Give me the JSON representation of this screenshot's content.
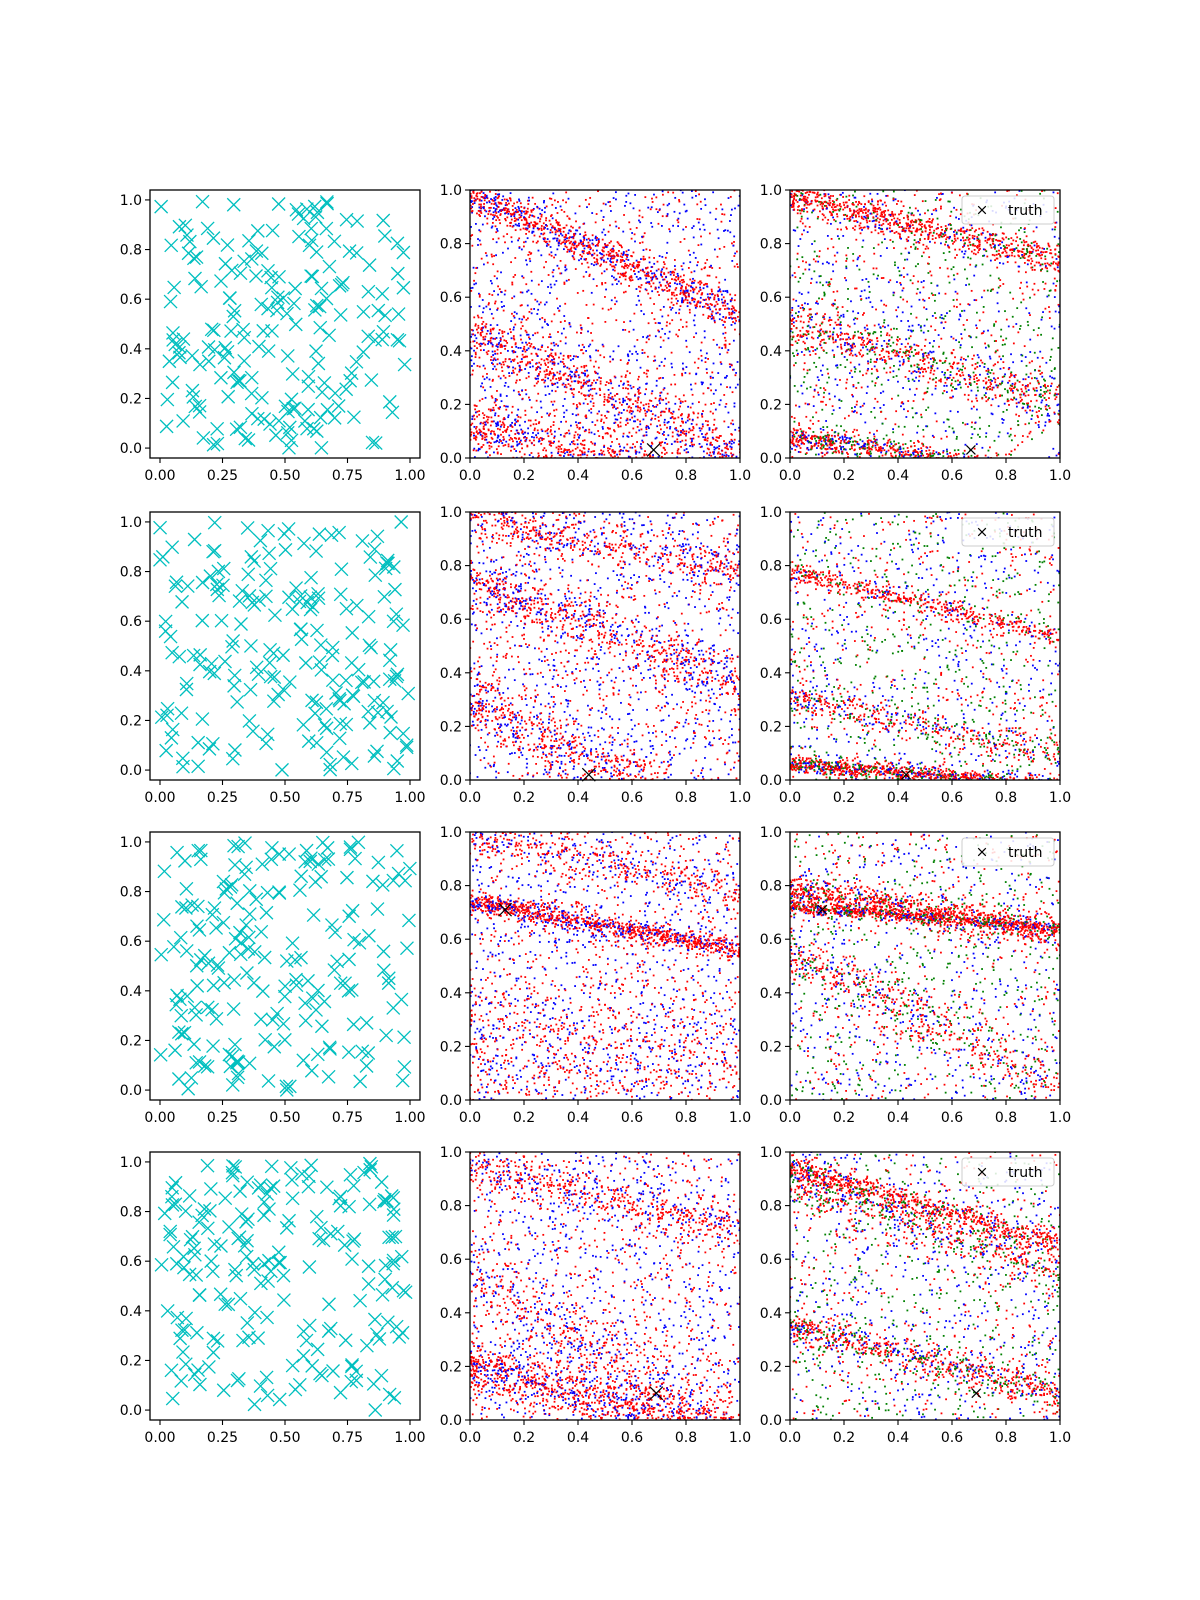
{
  "chart_data": [
    {
      "type": "scatter",
      "grid_row": 1,
      "grid_col": 1,
      "kind": "uniform",
      "seed": 101,
      "marker": "x",
      "color": "#00bfbf",
      "xlim": [
        -0.04,
        1.04
      ],
      "ylim": [
        -0.04,
        1.04
      ],
      "xticks": [
        0,
        0.25,
        0.5,
        0.75,
        1.0
      ],
      "xtick_labels": [
        "0.00",
        "0.25",
        "0.50",
        "0.75",
        "1.00"
      ],
      "yticks": [
        0,
        0.2,
        0.4,
        0.6,
        0.8,
        1.0
      ],
      "ytick_labels": [
        "0.0",
        "0.2",
        "0.4",
        "0.6",
        "0.8",
        "1.0"
      ],
      "n_points": 200
    },
    {
      "type": "scatter",
      "grid_row": 1,
      "grid_col": 2,
      "kind": "bands",
      "seed": 102,
      "colors": [
        "#0000ff",
        "#ff0000"
      ],
      "xlim": [
        0,
        1
      ],
      "ylim": [
        0,
        1
      ],
      "xticks": [
        0,
        0.2,
        0.4,
        0.6,
        0.8,
        1.0
      ],
      "xtick_labels": [
        "0.0",
        "0.2",
        "0.4",
        "0.6",
        "0.8",
        "1.0"
      ],
      "yticks": [
        0,
        0.2,
        0.4,
        0.6,
        0.8,
        1.0
      ],
      "ytick_labels": [
        "0.0",
        "0.2",
        "0.4",
        "0.6",
        "0.8",
        "1.0"
      ],
      "truth": [
        0.68,
        0.03
      ],
      "bands": [
        {
          "y0": 0.98,
          "slope": -0.45,
          "spread": 0.035,
          "n": 900
        },
        {
          "y0": 0.47,
          "slope": -0.45,
          "spread": 0.05,
          "n": 700
        },
        {
          "y0": 0.12,
          "slope": -0.2,
          "spread": 0.05,
          "n": 700
        }
      ]
    },
    {
      "type": "scatter",
      "grid_row": 1,
      "grid_col": 3,
      "kind": "bands",
      "seed": 103,
      "colors": [
        "#0000ff",
        "#008000",
        "#ff0000"
      ],
      "xlim": [
        0,
        1
      ],
      "ylim": [
        0,
        1
      ],
      "xticks": [
        0,
        0.2,
        0.4,
        0.6,
        0.8,
        1.0
      ],
      "xtick_labels": [
        "0.0",
        "0.2",
        "0.4",
        "0.6",
        "0.8",
        "1.0"
      ],
      "yticks": [
        0,
        0.2,
        0.4,
        0.6,
        0.8,
        1.0
      ],
      "ytick_labels": [
        "0.0",
        "0.2",
        "0.4",
        "0.6",
        "0.8",
        "1.0"
      ],
      "truth": [
        0.67,
        0.03
      ],
      "legend": {
        "label": "truth",
        "location": "upper right"
      },
      "bands": [
        {
          "y0": 0.98,
          "slope": -0.25,
          "spread": 0.03,
          "n": 800
        },
        {
          "y0": 0.5,
          "slope": -0.3,
          "spread": 0.04,
          "n": 600
        },
        {
          "y0": 0.08,
          "slope": -0.15,
          "spread": 0.02,
          "n": 800
        }
      ]
    },
    {
      "type": "scatter",
      "grid_row": 2,
      "grid_col": 1,
      "kind": "uniform",
      "seed": 201,
      "marker": "x",
      "color": "#00bfbf",
      "xlim": [
        -0.04,
        1.04
      ],
      "ylim": [
        -0.04,
        1.04
      ],
      "xticks": [
        0,
        0.25,
        0.5,
        0.75,
        1.0
      ],
      "xtick_labels": [
        "0.00",
        "0.25",
        "0.50",
        "0.75",
        "1.00"
      ],
      "yticks": [
        0,
        0.2,
        0.4,
        0.6,
        0.8,
        1.0
      ],
      "ytick_labels": [
        "0.0",
        "0.2",
        "0.4",
        "0.6",
        "0.8",
        "1.0"
      ],
      "n_points": 200
    },
    {
      "type": "scatter",
      "grid_row": 2,
      "grid_col": 2,
      "kind": "bands",
      "seed": 202,
      "colors": [
        "#0000ff",
        "#ff0000"
      ],
      "xlim": [
        0,
        1
      ],
      "ylim": [
        0,
        1
      ],
      "xticks": [
        0,
        0.2,
        0.4,
        0.6,
        0.8,
        1.0
      ],
      "xtick_labels": [
        "0.0",
        "0.2",
        "0.4",
        "0.6",
        "0.8",
        "1.0"
      ],
      "yticks": [
        0,
        0.2,
        0.4,
        0.6,
        0.8,
        1.0
      ],
      "ytick_labels": [
        "0.0",
        "0.2",
        "0.4",
        "0.6",
        "0.8",
        "1.0"
      ],
      "truth": [
        0.44,
        0.02
      ],
      "bands": [
        {
          "y0": 0.98,
          "slope": -0.2,
          "spread": 0.04,
          "n": 500
        },
        {
          "y0": 0.75,
          "slope": -0.4,
          "spread": 0.05,
          "n": 700
        },
        {
          "y0": 0.3,
          "slope": -0.5,
          "spread": 0.06,
          "n": 700
        }
      ]
    },
    {
      "type": "scatter",
      "grid_row": 2,
      "grid_col": 3,
      "kind": "bands",
      "seed": 203,
      "colors": [
        "#0000ff",
        "#008000",
        "#ff0000"
      ],
      "xlim": [
        0,
        1
      ],
      "ylim": [
        0,
        1
      ],
      "xticks": [
        0,
        0.2,
        0.4,
        0.6,
        0.8,
        1.0
      ],
      "xtick_labels": [
        "0.0",
        "0.2",
        "0.4",
        "0.6",
        "0.8",
        "1.0"
      ],
      "yticks": [
        0,
        0.2,
        0.4,
        0.6,
        0.8,
        1.0
      ],
      "ytick_labels": [
        "0.0",
        "0.2",
        "0.4",
        "0.6",
        "0.8",
        "1.0"
      ],
      "truth": [
        0.43,
        0.02
      ],
      "legend": {
        "label": "truth",
        "location": "upper right"
      },
      "bands": [
        {
          "y0": 0.78,
          "slope": -0.25,
          "spread": 0.02,
          "n": 500
        },
        {
          "y0": 0.3,
          "slope": -0.2,
          "spread": 0.03,
          "n": 400
        },
        {
          "y0": 0.06,
          "slope": -0.08,
          "spread": 0.015,
          "n": 1000
        }
      ]
    },
    {
      "type": "scatter",
      "grid_row": 3,
      "grid_col": 1,
      "kind": "uniform",
      "seed": 301,
      "marker": "x",
      "color": "#00bfbf",
      "xlim": [
        -0.04,
        1.04
      ],
      "ylim": [
        -0.04,
        1.04
      ],
      "xticks": [
        0,
        0.25,
        0.5,
        0.75,
        1.0
      ],
      "xtick_labels": [
        "0.00",
        "0.25",
        "0.50",
        "0.75",
        "1.00"
      ],
      "yticks": [
        0,
        0.2,
        0.4,
        0.6,
        0.8,
        1.0
      ],
      "ytick_labels": [
        "0.0",
        "0.2",
        "0.4",
        "0.6",
        "0.8",
        "1.0"
      ],
      "n_points": 200
    },
    {
      "type": "scatter",
      "grid_row": 3,
      "grid_col": 2,
      "kind": "bands",
      "seed": 302,
      "colors": [
        "#0000ff",
        "#ff0000"
      ],
      "xlim": [
        0,
        1
      ],
      "ylim": [
        0,
        1
      ],
      "xticks": [
        0,
        0.2,
        0.4,
        0.6,
        0.8,
        1.0
      ],
      "xtick_labels": [
        "0.0",
        "0.2",
        "0.4",
        "0.6",
        "0.8",
        "1.0"
      ],
      "yticks": [
        0,
        0.2,
        0.4,
        0.6,
        0.8,
        1.0
      ],
      "ytick_labels": [
        "0.0",
        "0.2",
        "0.4",
        "0.6",
        "0.8",
        "1.0"
      ],
      "truth": [
        0.13,
        0.71
      ],
      "bands": [
        {
          "y0": 0.74,
          "slope": -0.18,
          "spread": 0.02,
          "n": 1000
        },
        {
          "y0": 0.98,
          "slope": -0.2,
          "spread": 0.04,
          "n": 400
        },
        {
          "y0": 0.2,
          "slope": -0.1,
          "spread": 0.15,
          "n": 600
        }
      ]
    },
    {
      "type": "scatter",
      "grid_row": 3,
      "grid_col": 3,
      "kind": "bands",
      "seed": 303,
      "colors": [
        "#0000ff",
        "#008000",
        "#ff0000"
      ],
      "xlim": [
        0,
        1
      ],
      "ylim": [
        0,
        1
      ],
      "xticks": [
        0,
        0.2,
        0.4,
        0.6,
        0.8,
        1.0
      ],
      "xtick_labels": [
        "0.0",
        "0.2",
        "0.4",
        "0.6",
        "0.8",
        "1.0"
      ],
      "yticks": [
        0,
        0.2,
        0.4,
        0.6,
        0.8,
        1.0
      ],
      "ytick_labels": [
        "0.0",
        "0.2",
        "0.4",
        "0.6",
        "0.8",
        "1.0"
      ],
      "truth": [
        0.12,
        0.71
      ],
      "legend": {
        "label": "truth",
        "location": "upper right"
      },
      "bands": [
        {
          "y0": 0.78,
          "slope": -0.15,
          "spread": 0.03,
          "n": 1000
        },
        {
          "y0": 0.72,
          "slope": -0.08,
          "spread": 0.01,
          "n": 600
        },
        {
          "y0": 0.55,
          "slope": -0.5,
          "spread": 0.05,
          "n": 500
        }
      ]
    },
    {
      "type": "scatter",
      "grid_row": 4,
      "grid_col": 1,
      "kind": "uniform",
      "seed": 401,
      "marker": "x",
      "color": "#00bfbf",
      "xlim": [
        -0.04,
        1.04
      ],
      "ylim": [
        -0.04,
        1.04
      ],
      "xticks": [
        0,
        0.25,
        0.5,
        0.75,
        1.0
      ],
      "xtick_labels": [
        "0.00",
        "0.25",
        "0.50",
        "0.75",
        "1.00"
      ],
      "yticks": [
        0,
        0.2,
        0.4,
        0.6,
        0.8,
        1.0
      ],
      "ytick_labels": [
        "0.0",
        "0.2",
        "0.4",
        "0.6",
        "0.8",
        "1.0"
      ],
      "n_points": 200
    },
    {
      "type": "scatter",
      "grid_row": 4,
      "grid_col": 2,
      "kind": "bands",
      "seed": 402,
      "colors": [
        "#0000ff",
        "#ff0000"
      ],
      "xlim": [
        0,
        1
      ],
      "ylim": [
        0,
        1
      ],
      "xticks": [
        0,
        0.2,
        0.4,
        0.6,
        0.8,
        1.0
      ],
      "xtick_labels": [
        "0.0",
        "0.2",
        "0.4",
        "0.6",
        "0.8",
        "1.0"
      ],
      "yticks": [
        0,
        0.2,
        0.4,
        0.6,
        0.8,
        1.0
      ],
      "ytick_labels": [
        "0.0",
        "0.2",
        "0.4",
        "0.6",
        "0.8",
        "1.0"
      ],
      "truth": [
        0.69,
        0.1
      ],
      "bands": [
        {
          "y0": 0.95,
          "slope": -0.25,
          "spread": 0.04,
          "n": 500
        },
        {
          "y0": 0.2,
          "slope": -0.25,
          "spread": 0.05,
          "n": 1000
        },
        {
          "y0": 0.55,
          "slope": -0.6,
          "spread": 0.08,
          "n": 500
        }
      ]
    },
    {
      "type": "scatter",
      "grid_row": 4,
      "grid_col": 3,
      "kind": "bands",
      "seed": 403,
      "colors": [
        "#0000ff",
        "#008000",
        "#ff0000"
      ],
      "xlim": [
        0,
        1
      ],
      "ylim": [
        0,
        1
      ],
      "xticks": [
        0,
        0.2,
        0.4,
        0.6,
        0.8,
        1.0
      ],
      "xtick_labels": [
        "0.0",
        "0.2",
        "0.4",
        "0.6",
        "0.8",
        "1.0"
      ],
      "yticks": [
        0,
        0.2,
        0.4,
        0.6,
        0.8,
        1.0
      ],
      "ytick_labels": [
        "0.0",
        "0.2",
        "0.4",
        "0.6",
        "0.8",
        "1.0"
      ],
      "truth": [
        0.69,
        0.1
      ],
      "legend": {
        "label": "truth",
        "location": "upper right"
      },
      "bands": [
        {
          "y0": 0.94,
          "slope": -0.28,
          "spread": 0.02,
          "n": 600
        },
        {
          "y0": 0.9,
          "slope": -0.35,
          "spread": 0.05,
          "n": 700
        },
        {
          "y0": 0.35,
          "slope": -0.25,
          "spread": 0.03,
          "n": 700
        }
      ]
    }
  ]
}
